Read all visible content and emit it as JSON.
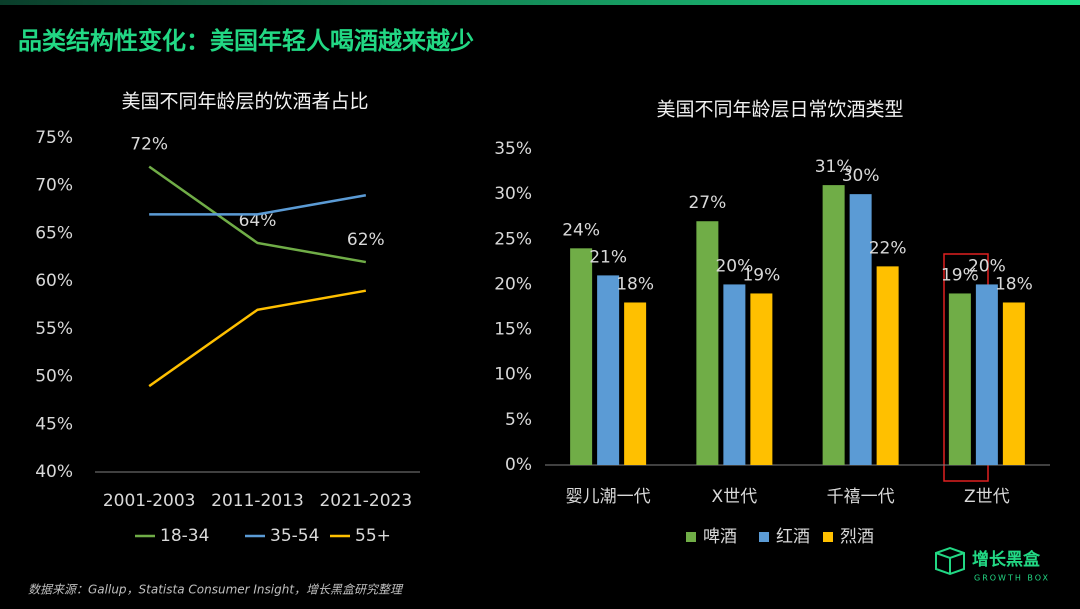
{
  "title": "品类结构性变化：美国年轻人喝酒越来越少",
  "source": "数据来源：Gallup，Statista Consumer Insight，增长黑盒研究整理",
  "logo": {
    "name": "增长黑盒",
    "tagline": "GROWTH BOX"
  },
  "chart_data": [
    {
      "type": "line",
      "title": "美国不同年龄层的饮酒者占比",
      "categories": [
        "2001-2003",
        "2011-2013",
        "2021-2023"
      ],
      "series": [
        {
          "name": "18-34",
          "color": "#70ad47",
          "values": [
            72,
            64,
            62
          ],
          "value_labels": [
            "72%",
            "64%",
            "62%"
          ]
        },
        {
          "name": "35-54",
          "color": "#5b9bd5",
          "values": [
            67,
            67,
            69
          ]
        },
        {
          "name": "55+",
          "color": "#ffc000",
          "values": [
            49,
            57,
            59
          ]
        }
      ],
      "ylim": [
        40,
        75
      ],
      "yticks": [
        {
          "value": 40,
          "label": "40%"
        },
        {
          "value": 45,
          "label": "45%"
        },
        {
          "value": 50,
          "label": "50%"
        },
        {
          "value": 55,
          "label": "55%"
        },
        {
          "value": 60,
          "label": "60%"
        },
        {
          "value": 65,
          "label": "65%"
        },
        {
          "value": 70,
          "label": "70%"
        },
        {
          "value": 75,
          "label": "75%"
        }
      ],
      "legend": "bottom"
    },
    {
      "type": "bar",
      "title": "美国不同年龄层日常饮酒类型",
      "categories": [
        "婴儿潮一代",
        "X世代",
        "千禧一代",
        "Z世代"
      ],
      "series": [
        {
          "name": "啤酒",
          "color": "#70ad47",
          "values": [
            24,
            27,
            31,
            19
          ],
          "value_labels": [
            "24%",
            "27%",
            "31%",
            "19%"
          ]
        },
        {
          "name": "红酒",
          "color": "#5b9bd5",
          "values": [
            21,
            20,
            30,
            20
          ],
          "value_labels": [
            "21%",
            "20%",
            "30%",
            "20%"
          ]
        },
        {
          "name": "烈酒",
          "color": "#ffc000",
          "values": [
            18,
            19,
            22,
            18
          ],
          "value_labels": [
            "18%",
            "19%",
            "22%",
            "18%"
          ]
        }
      ],
      "ylim": [
        0,
        35
      ],
      "yticks": [
        {
          "value": 0,
          "label": "0%"
        },
        {
          "value": 5,
          "label": "5%"
        },
        {
          "value": 10,
          "label": "10%"
        },
        {
          "value": 15,
          "label": "15%"
        },
        {
          "value": 20,
          "label": "20%"
        },
        {
          "value": 25,
          "label": "25%"
        },
        {
          "value": 30,
          "label": "30%"
        },
        {
          "value": 35,
          "label": "35%"
        }
      ],
      "legend": "bottom"
    }
  ]
}
